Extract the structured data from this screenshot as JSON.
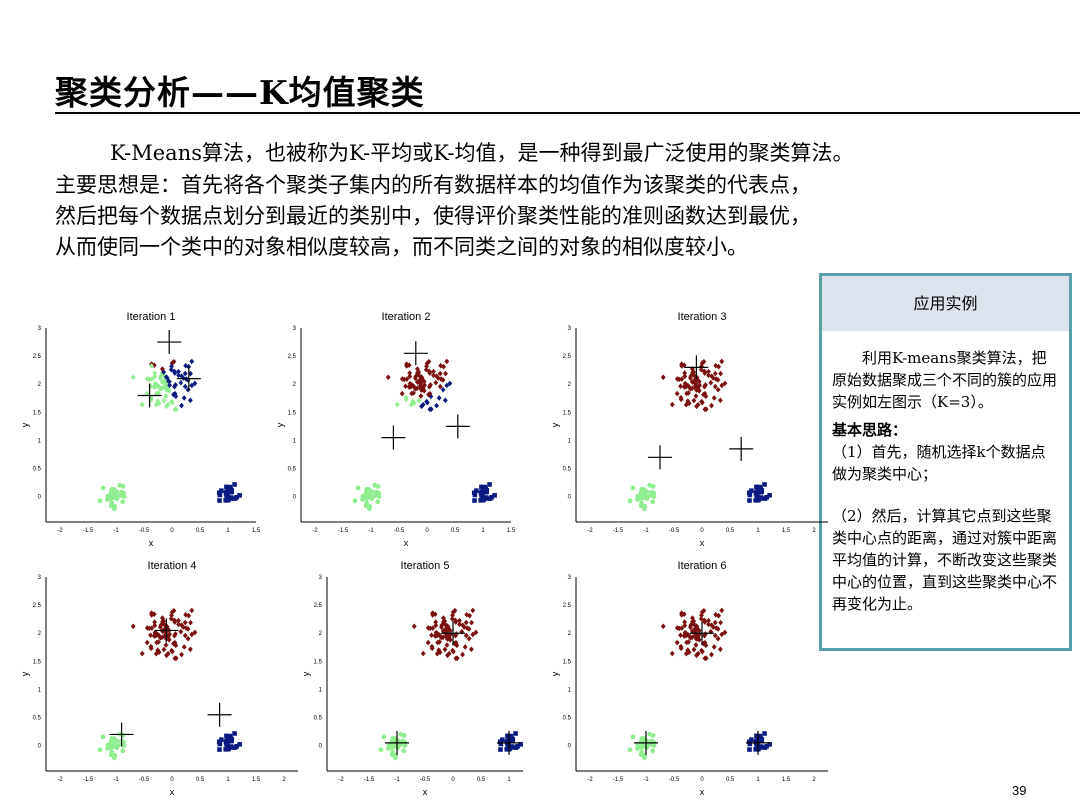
{
  "title": "聚类分析——K均值聚类",
  "paragraph": [
    "K-Means算法，也被称为K-平均或K-均值，是一种得到最广泛使用的聚类算法。",
    "主要思想是：首先将各个聚类子集内的所有数据样本的均值作为该聚类的代表点，",
    "然后把每个数据点划分到最近的类别中，使得评价聚类性能的准则函数达到最优，",
    "从而使同一个类中的对象相似度较高，而不同类之间的对象的相似度较小。"
  ],
  "sidebox": {
    "header": "应用实例",
    "intro": "利用K-means聚类算法，把原始数据聚成三个不同的簇的应用实例如左图示（K=3）。",
    "subheading": "基本思路：",
    "step1": "（1）首先，随机选择k个数据点做为聚类中心；",
    "step2": "（2）然后，计算其它点到这些聚类中心点的距离，通过对簇中距离平均值的计算，不断改变这些聚类中心的位置，直到这些聚类中心不再变化为止。"
  },
  "page_number": "39",
  "colors": {
    "cluster_red": "#7a1010",
    "cluster_blue": "#0b1a80",
    "cluster_green": "#90ee90"
  },
  "chart_data": [
    {
      "type": "scatter",
      "title": "Iteration 1",
      "xlabel": "x",
      "ylabel": "y",
      "xlim": [
        -2.25,
        1.5
      ],
      "ylim": [
        -0.45,
        3
      ],
      "centroids": [
        [
          -0.05,
          2.75
        ],
        [
          0.3,
          2.1
        ],
        [
          -0.4,
          1.8
        ]
      ]
    },
    {
      "type": "scatter",
      "title": "Iteration 2",
      "xlabel": "x",
      "ylabel": "y",
      "xlim": [
        -2.25,
        1.5
      ],
      "ylim": [
        -0.45,
        3
      ],
      "centroids": [
        [
          -0.2,
          2.55
        ],
        [
          0.55,
          1.25
        ],
        [
          -0.6,
          1.05
        ]
      ]
    },
    {
      "type": "scatter",
      "title": "Iteration 3",
      "xlabel": "x",
      "ylabel": "y",
      "xlim": [
        -2.25,
        2.25
      ],
      "ylim": [
        -0.45,
        3
      ],
      "centroids": [
        [
          -0.1,
          2.3
        ],
        [
          0.7,
          0.85
        ],
        [
          -0.75,
          0.7
        ]
      ]
    },
    {
      "type": "scatter",
      "title": "Iteration 4",
      "xlabel": "x",
      "ylabel": "y",
      "xlim": [
        -2.25,
        2.25
      ],
      "ylim": [
        -0.45,
        3
      ],
      "centroids": [
        [
          -0.1,
          2.05
        ],
        [
          0.85,
          0.55
        ],
        [
          -0.9,
          0.2
        ]
      ]
    },
    {
      "type": "scatter",
      "title": "Iteration 5",
      "xlabel": "x",
      "ylabel": "y",
      "xlim": [
        -2.25,
        1.25
      ],
      "ylim": [
        -0.45,
        3
      ],
      "centroids": [
        [
          0,
          2.0
        ],
        [
          1.0,
          0.05
        ],
        [
          -1.0,
          0.05
        ]
      ]
    },
    {
      "type": "scatter",
      "title": "Iteration 6",
      "xlabel": "x",
      "ylabel": "y",
      "xlim": [
        -2.25,
        2.25
      ],
      "ylim": [
        -0.45,
        3
      ],
      "centroids": [
        [
          0,
          2.0
        ],
        [
          1.0,
          0.05
        ],
        [
          -1.0,
          0.05
        ]
      ]
    }
  ]
}
